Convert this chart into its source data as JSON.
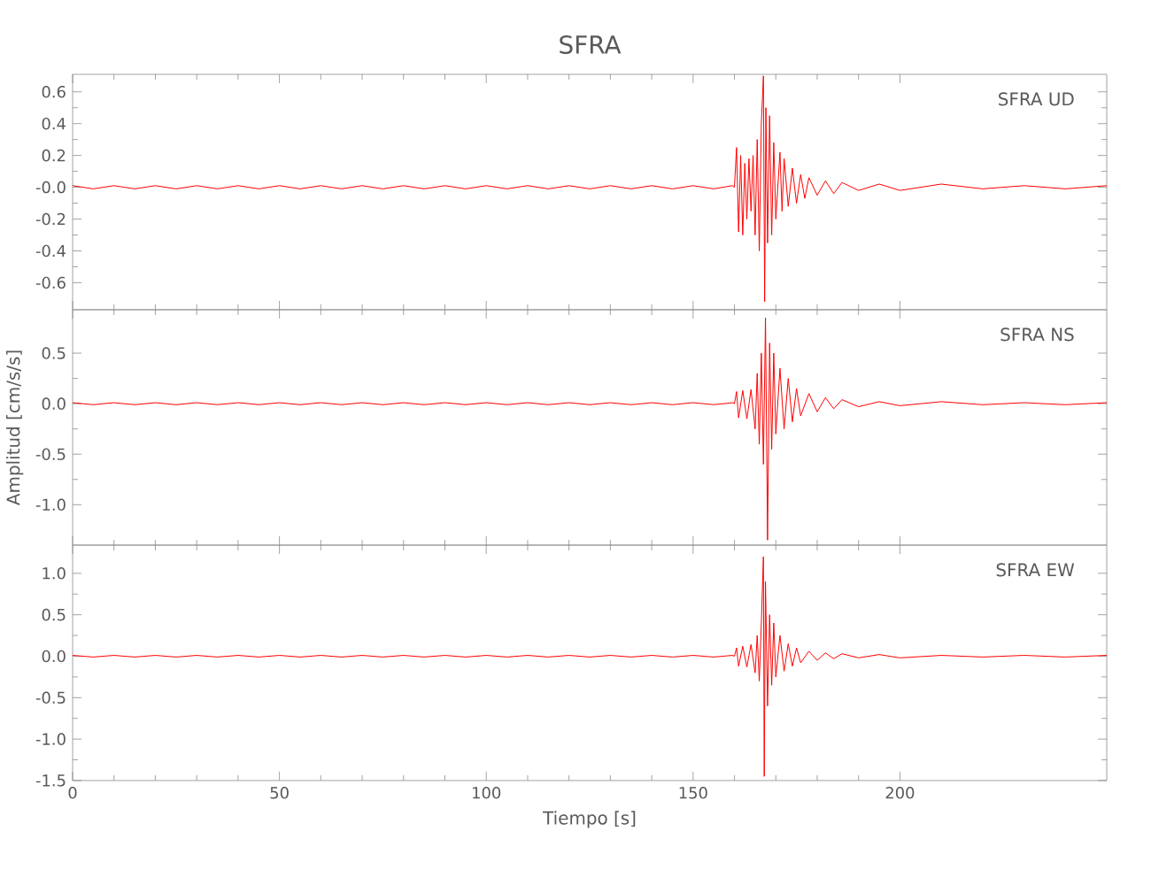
{
  "chart_data": [
    {
      "type": "line",
      "title": "SFRA",
      "annotations": [
        "SFRA   UD"
      ],
      "xlim": [
        0,
        250
      ],
      "xticks": [
        0,
        50,
        100,
        150,
        200
      ],
      "ylim": [
        -0.77,
        0.71
      ],
      "yticks": [
        -0.6,
        -0.4,
        -0.2,
        {
          "value": 0,
          "label": "-0.0"
        },
        0.2,
        0.4,
        0.6
      ],
      "tick_labels": "y",
      "x": [
        0,
        5,
        10,
        15,
        20,
        25,
        30,
        35,
        40,
        45,
        50,
        55,
        60,
        65,
        70,
        75,
        80,
        85,
        90,
        95,
        100,
        105,
        110,
        115,
        120,
        125,
        130,
        135,
        140,
        145,
        150,
        155,
        159.5,
        160,
        160.5,
        161,
        161.5,
        162,
        162.5,
        163,
        163.5,
        164,
        164.5,
        165,
        165.5,
        166,
        166.5,
        167,
        167.3,
        167.6,
        168,
        168.5,
        169,
        169.5,
        170,
        171,
        171.5,
        172,
        173,
        174,
        175,
        176,
        177,
        178,
        180,
        182,
        184,
        186,
        190,
        195,
        200,
        210,
        220,
        230,
        240,
        250
      ],
      "series": [
        {
          "color": "#ff0000",
          "values": [
            0.01,
            -0.01,
            0.01,
            -0.01,
            0.01,
            -0.01,
            0.01,
            -0.01,
            0.01,
            -0.01,
            0.01,
            -0.01,
            0.01,
            -0.01,
            0.01,
            -0.01,
            0.01,
            -0.01,
            0.01,
            -0.01,
            0.01,
            -0.01,
            0.01,
            -0.01,
            0.01,
            -0.01,
            0.01,
            -0.01,
            0.01,
            -0.01,
            0.01,
            -0.01,
            0.01,
            0.0,
            0.25,
            -0.28,
            0.2,
            -0.3,
            0.15,
            -0.2,
            0.18,
            -0.15,
            0.2,
            -0.3,
            0.3,
            -0.4,
            0.4,
            0.7,
            -0.72,
            0.5,
            -0.35,
            0.45,
            -0.3,
            0.28,
            -0.2,
            0.22,
            -0.15,
            0.18,
            -0.12,
            0.12,
            -0.1,
            0.08,
            -0.07,
            0.06,
            -0.05,
            0.04,
            -0.04,
            0.03,
            -0.02,
            0.02,
            -0.02,
            0.02,
            -0.01,
            0.01,
            -0.01,
            0.01
          ]
        }
      ]
    },
    {
      "type": "line",
      "ylabel": "Amplitud  [cm/s/s]",
      "annotations": [
        "SFRA   NS"
      ],
      "xlim": [
        0,
        250
      ],
      "xticks": [
        0,
        50,
        100,
        150,
        200
      ],
      "ylim": [
        -1.4,
        0.93
      ],
      "yticks": [
        {
          "value": -1,
          "label": "-1.0"
        },
        -0.5,
        {
          "value": 0,
          "label": "0.0"
        },
        0.5
      ],
      "tick_labels": "y",
      "x": [
        0,
        5,
        10,
        15,
        20,
        25,
        30,
        35,
        40,
        45,
        50,
        55,
        60,
        65,
        70,
        75,
        80,
        85,
        90,
        95,
        100,
        105,
        110,
        115,
        120,
        125,
        130,
        135,
        140,
        145,
        150,
        155,
        159.5,
        160,
        160.5,
        161,
        162,
        163,
        164,
        165,
        165.5,
        166,
        166.5,
        167,
        167.5,
        168,
        168.5,
        169,
        169.5,
        170,
        171,
        172,
        173,
        174,
        175,
        176,
        178,
        180,
        182,
        184,
        186,
        190,
        195,
        200,
        210,
        220,
        230,
        240,
        250
      ],
      "series": [
        {
          "color": "#ff0000",
          "values": [
            0.01,
            -0.01,
            0.01,
            -0.01,
            0.01,
            -0.01,
            0.01,
            -0.01,
            0.01,
            -0.01,
            0.01,
            -0.01,
            0.01,
            -0.01,
            0.01,
            -0.01,
            0.01,
            -0.01,
            0.01,
            -0.01,
            0.01,
            -0.01,
            0.01,
            -0.01,
            0.01,
            -0.01,
            0.01,
            -0.01,
            0.01,
            -0.01,
            0.01,
            -0.01,
            0.01,
            0.0,
            0.12,
            -0.14,
            0.13,
            -0.15,
            0.14,
            -0.25,
            0.3,
            -0.4,
            0.5,
            -0.6,
            0.85,
            -1.35,
            0.6,
            -0.45,
            0.5,
            -0.3,
            0.35,
            -0.25,
            0.25,
            -0.18,
            0.15,
            -0.12,
            0.1,
            -0.08,
            0.06,
            -0.05,
            0.04,
            -0.03,
            0.02,
            -0.02,
            0.02,
            -0.01,
            0.01,
            -0.01,
            0.01
          ]
        }
      ]
    },
    {
      "type": "line",
      "xlabel": "Tiempo  [s]",
      "annotations": [
        "SFRA   EW"
      ],
      "xlim": [
        0,
        250
      ],
      "xticks": [
        0,
        50,
        100,
        150,
        200
      ],
      "ylim": [
        -1.5,
        1.34
      ],
      "yticks": [
        -1.5,
        {
          "value": -1,
          "label": "-1.0"
        },
        -0.5,
        {
          "value": 0,
          "label": "0.0"
        },
        0.5,
        {
          "value": 1,
          "label": "1.0"
        }
      ],
      "x": [
        0,
        5,
        10,
        15,
        20,
        25,
        30,
        35,
        40,
        45,
        50,
        55,
        60,
        65,
        70,
        75,
        80,
        85,
        90,
        95,
        100,
        105,
        110,
        115,
        120,
        125,
        130,
        135,
        140,
        145,
        150,
        155,
        159.5,
        160,
        160.5,
        161,
        162,
        163,
        164,
        165,
        165.5,
        166,
        166.5,
        167,
        167.2,
        167.5,
        168,
        168.5,
        169,
        169.5,
        170,
        171,
        172,
        173,
        174,
        175,
        176,
        178,
        180,
        182,
        184,
        186,
        190,
        195,
        200,
        210,
        220,
        230,
        240,
        250
      ],
      "series": [
        {
          "color": "#ff0000",
          "values": [
            0.01,
            -0.01,
            0.01,
            -0.01,
            0.01,
            -0.01,
            0.01,
            -0.01,
            0.01,
            -0.01,
            0.01,
            -0.01,
            0.01,
            -0.01,
            0.01,
            -0.01,
            0.01,
            -0.01,
            0.01,
            -0.01,
            0.01,
            -0.01,
            0.01,
            -0.01,
            0.01,
            -0.01,
            0.01,
            -0.01,
            0.01,
            -0.01,
            0.01,
            -0.01,
            0.01,
            0.0,
            0.1,
            -0.12,
            0.12,
            -0.13,
            0.14,
            -0.2,
            0.25,
            -0.3,
            0.4,
            1.2,
            -1.45,
            0.9,
            -0.6,
            0.5,
            -0.35,
            0.4,
            -0.25,
            0.25,
            -0.18,
            0.15,
            -0.12,
            0.1,
            -0.08,
            0.06,
            -0.05,
            0.04,
            -0.03,
            0.03,
            -0.02,
            0.02,
            -0.02,
            0.01,
            -0.01,
            0.01,
            -0.01,
            0.01
          ]
        }
      ]
    }
  ]
}
